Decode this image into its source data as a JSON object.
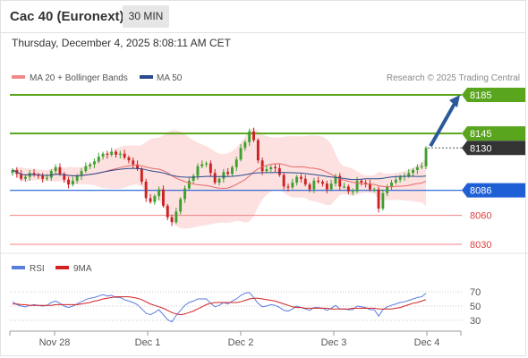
{
  "header": {
    "title": "Cac 40 (Euronext)",
    "timeframe": "30 MIN",
    "datetime": "Thursday, December 4, 2025 8:08:11 AM CET"
  },
  "colors": {
    "resistance": "#5aa51e",
    "support": "#1f5fd6",
    "weak_level": "#f08080",
    "last_price": "#333333",
    "bull_candle": "#3ca12e",
    "bear_candle": "#cc2222",
    "ma20": "#e66a6a",
    "bollinger_fill": "#fde0e0",
    "ma50": "#2a4a8c",
    "rsi": "#5a7de0",
    "rsi_ma": "#d42020",
    "arrow": "#2b5a9a"
  },
  "chart_data": [
    {
      "type": "candlestick",
      "title": "",
      "legend": [
        {
          "label": "MA 20 + Bollinger Bands",
          "color": "#f08a8a"
        },
        {
          "label": "MA 50",
          "color": "#2a4a8c"
        }
      ],
      "legend_placement": "top-left",
      "credit": "Research © 2025 Trading Central",
      "x_ticks": [
        "Nov 28",
        "Dec 1",
        "Dec 2",
        "Dec 3",
        "Dec 4"
      ],
      "y_range": [
        8020,
        8200
      ],
      "levels": [
        {
          "label": "8185",
          "value": 8185,
          "kind": "resistance"
        },
        {
          "label": "8145",
          "value": 8145,
          "kind": "resistance"
        },
        {
          "label": "8130",
          "value": 8130,
          "kind": "last_price"
        },
        {
          "label": "8086",
          "value": 8086,
          "kind": "support"
        },
        {
          "label": "8060",
          "value": 8060,
          "kind": "minor"
        },
        {
          "label": "8030",
          "value": 8030,
          "kind": "minor"
        }
      ],
      "arrow": {
        "from": 8130,
        "to": 8185,
        "direction": "up"
      },
      "close": [
        8107,
        8103,
        8098,
        8100,
        8104,
        8102,
        8101,
        8098,
        8099,
        8106,
        8110,
        8103,
        8097,
        8092,
        8096,
        8101,
        8106,
        8111,
        8113,
        8116,
        8121,
        8124,
        8123,
        8126,
        8123,
        8124,
        8120,
        8117,
        8113,
        8108,
        8095,
        8078,
        8074,
        8080,
        8087,
        8070,
        8058,
        8053,
        8064,
        8077,
        8088,
        8096,
        8101,
        8111,
        8113,
        8114,
        8104,
        8094,
        8098,
        8105,
        8103,
        8110,
        8118,
        8130,
        8136,
        8147,
        8138,
        8117,
        8106,
        8108,
        8110,
        8109,
        8102,
        8090,
        8089,
        8094,
        8100,
        8098,
        8092,
        8087,
        8096,
        8095,
        8093,
        8087,
        8093,
        8101,
        8090,
        8090,
        8085,
        8085,
        8096,
        8094,
        8093,
        8087,
        8087,
        8067,
        8083,
        8090,
        8094,
        8097,
        8100,
        8101,
        8104,
        8107,
        8110,
        8111,
        8130
      ]
    },
    {
      "type": "line",
      "title": "",
      "legend": [
        {
          "label": "RSI",
          "color": "#5a7de0"
        },
        {
          "label": "9MA",
          "color": "#d42020"
        }
      ],
      "y_range": [
        20,
        80
      ],
      "y_ticks": [
        70,
        50,
        30
      ],
      "series": [
        {
          "name": "RSI",
          "values": [
            56,
            52,
            50,
            49,
            51,
            52,
            51,
            50,
            51,
            55,
            57,
            54,
            50,
            48,
            50,
            53,
            56,
            59,
            61,
            62,
            64,
            66,
            64,
            65,
            62,
            62,
            59,
            57,
            55,
            52,
            46,
            40,
            38,
            41,
            45,
            38,
            31,
            28,
            37,
            44,
            51,
            55,
            57,
            60,
            60,
            60,
            54,
            49,
            51,
            55,
            53,
            57,
            60,
            65,
            68,
            69,
            62,
            54,
            49,
            50,
            52,
            51,
            48,
            44,
            43,
            46,
            50,
            48,
            46,
            44,
            48,
            48,
            47,
            44,
            47,
            51,
            46,
            46,
            45,
            45,
            50,
            49,
            48,
            45,
            45,
            36,
            45,
            49,
            51,
            53,
            55,
            56,
            58,
            60,
            62,
            63,
            68
          ]
        },
        {
          "name": "9MA",
          "values": [
            53,
            53,
            52,
            52,
            51,
            51,
            51,
            51,
            51,
            51,
            52,
            52,
            52,
            52,
            52,
            52,
            53,
            54,
            55,
            57,
            58,
            60,
            61,
            62,
            63,
            63,
            63,
            63,
            62,
            61,
            59,
            56,
            53,
            51,
            49,
            47,
            44,
            41,
            39,
            38,
            39,
            41,
            43,
            46,
            49,
            52,
            54,
            55,
            55,
            55,
            55,
            55,
            55,
            56,
            58,
            60,
            61,
            61,
            60,
            59,
            58,
            57,
            55,
            53,
            51,
            49,
            48,
            48,
            47,
            47,
            47,
            47,
            47,
            47,
            46,
            46,
            46,
            46,
            46,
            47,
            47,
            47,
            47,
            47,
            47,
            46,
            46,
            46,
            46,
            47,
            48,
            50,
            52,
            54,
            55,
            57,
            59
          ]
        }
      ]
    }
  ]
}
